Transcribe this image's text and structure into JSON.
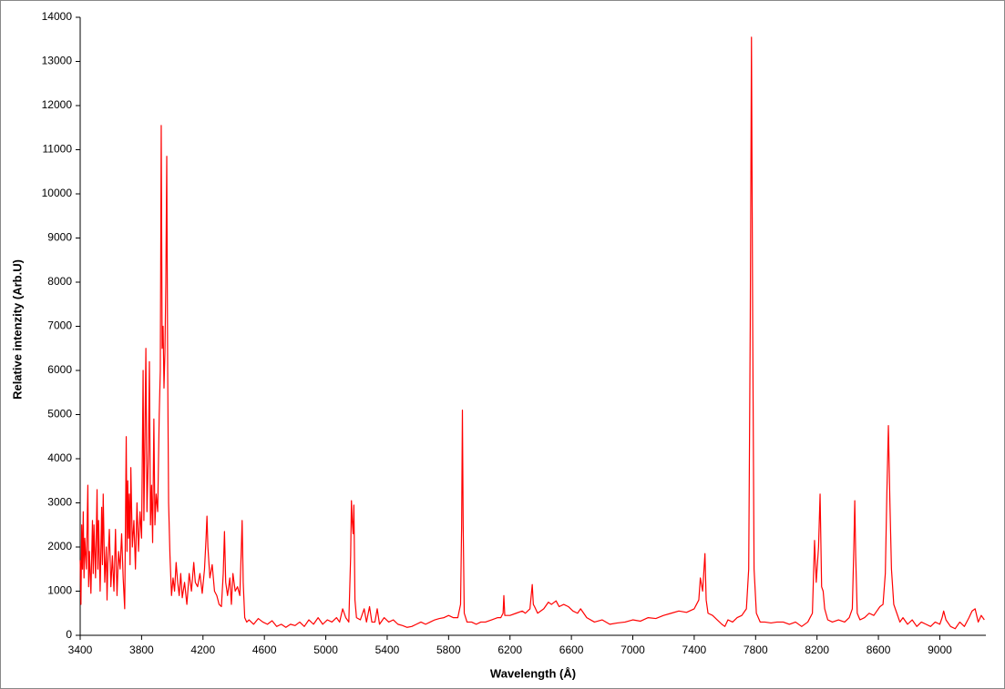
{
  "chart_data": {
    "type": "line",
    "xlabel": "Wavelength (Å)",
    "ylabel": "Relative intenzity (Arb.U)",
    "color": "#ff0000",
    "xlim": [
      3400,
      9300
    ],
    "xticks": [
      3400,
      3800,
      4200,
      4600,
      5000,
      5400,
      5800,
      6200,
      6600,
      7000,
      7400,
      7800,
      8200,
      8600,
      9000
    ],
    "ylim": [
      0,
      14000
    ],
    "yticks": [
      0,
      1000,
      2000,
      3000,
      4000,
      5000,
      6000,
      7000,
      8000,
      9000,
      10000,
      11000,
      12000,
      13000,
      14000
    ],
    "grid": false,
    "x": [
      3400,
      3405,
      3410,
      3415,
      3420,
      3425,
      3430,
      3440,
      3450,
      3455,
      3460,
      3470,
      3480,
      3485,
      3490,
      3500,
      3510,
      3515,
      3520,
      3530,
      3540,
      3545,
      3550,
      3560,
      3570,
      3575,
      3580,
      3590,
      3600,
      3610,
      3620,
      3630,
      3640,
      3650,
      3660,
      3670,
      3680,
      3690,
      3700,
      3705,
      3710,
      3715,
      3720,
      3725,
      3730,
      3740,
      3750,
      3760,
      3770,
      3780,
      3790,
      3800,
      3810,
      3815,
      3820,
      3828,
      3835,
      3845,
      3851,
      3858,
      3865,
      3872,
      3880,
      3887,
      3895,
      3905,
      3915,
      3922,
      3928,
      3934,
      3940,
      3946,
      3952,
      3958,
      3964,
      3970,
      3976,
      3985,
      3995,
      4005,
      4015,
      4025,
      4035,
      4045,
      4055,
      4065,
      4080,
      4095,
      4110,
      4125,
      4140,
      4150,
      4165,
      4180,
      4195,
      4210,
      4220,
      4226,
      4232,
      4245,
      4260,
      4275,
      4290,
      4305,
      4320,
      4332,
      4340,
      4348,
      4360,
      4375,
      4385,
      4395,
      4410,
      4425,
      4440,
      4450,
      4455,
      4462,
      4472,
      4485,
      4500,
      4530,
      4560,
      4590,
      4620,
      4650,
      4680,
      4710,
      4740,
      4770,
      4800,
      4830,
      4860,
      4890,
      4920,
      4950,
      4980,
      5010,
      5040,
      5070,
      5090,
      5110,
      5130,
      5150,
      5162,
      5167,
      5172,
      5178,
      5183,
      5190,
      5200,
      5225,
      5250,
      5265,
      5285,
      5300,
      5320,
      5335,
      5350,
      5380,
      5410,
      5440,
      5470,
      5500,
      5530,
      5560,
      5590,
      5620,
      5650,
      5680,
      5710,
      5740,
      5770,
      5800,
      5830,
      5860,
      5878,
      5885,
      5890,
      5895,
      5902,
      5920,
      5950,
      5980,
      6010,
      6040,
      6080,
      6120,
      6140,
      6155,
      6160,
      6166,
      6200,
      6240,
      6280,
      6300,
      6330,
      6345,
      6352,
      6360,
      6380,
      6420,
      6450,
      6470,
      6500,
      6520,
      6550,
      6580,
      6610,
      6640,
      6660,
      6700,
      6750,
      6800,
      6850,
      6900,
      6950,
      7000,
      7050,
      7100,
      7150,
      7200,
      7250,
      7300,
      7350,
      7400,
      7430,
      7440,
      7455,
      7470,
      7478,
      7490,
      7520,
      7550,
      7580,
      7600,
      7620,
      7650,
      7680,
      7710,
      7740,
      7755,
      7765,
      7773,
      7781,
      7790,
      7805,
      7830,
      7860,
      7900,
      7940,
      7980,
      8020,
      8060,
      8100,
      8140,
      8170,
      8184,
      8195,
      8210,
      8220,
      8230,
      8240,
      8250,
      8270,
      8300,
      8340,
      8380,
      8410,
      8430,
      8440,
      8446,
      8452,
      8462,
      8480,
      8510,
      8540,
      8570,
      8590,
      8610,
      8630,
      8645,
      8655,
      8665,
      8675,
      8685,
      8700,
      8720,
      8740,
      8760,
      8790,
      8820,
      8850,
      8880,
      8910,
      8940,
      8970,
      9000,
      9015,
      9025,
      9040,
      9070,
      9100,
      9130,
      9160,
      9190,
      9210,
      9230,
      9250,
      9270,
      9290
    ],
    "values": [
      1700,
      700,
      2500,
      1500,
      2800,
      1300,
      2200,
      1500,
      3400,
      1100,
      1900,
      950,
      2600,
      1400,
      2500,
      1300,
      3300,
      1500,
      2600,
      1000,
      2900,
      1600,
      3200,
      1200,
      2000,
      800,
      1600,
      2400,
      1100,
      1800,
      1000,
      2400,
      900,
      1900,
      1500,
      2300,
      1300,
      600,
      4500,
      1900,
      3500,
      2200,
      3200,
      1600,
      3800,
      2000,
      2600,
      1500,
      3000,
      1900,
      2800,
      2200,
      6000,
      2600,
      4000,
      6500,
      2800,
      4200,
      6200,
      2500,
      3400,
      2100,
      4900,
      2500,
      3200,
      2800,
      5000,
      6000,
      11550,
      6500,
      7000,
      5600,
      6400,
      8000,
      10850,
      6000,
      3000,
      1800,
      900,
      1300,
      1000,
      1650,
      1200,
      900,
      1400,
      850,
      1200,
      700,
      1400,
      1000,
      1650,
      1200,
      1100,
      1400,
      950,
      1500,
      2200,
      2700,
      2000,
      1300,
      1600,
      1000,
      900,
      700,
      650,
      1400,
      2350,
      1200,
      900,
      1300,
      700,
      1400,
      1000,
      1100,
      900,
      2000,
      2600,
      1200,
      400,
      300,
      350,
      250,
      380,
      300,
      250,
      330,
      200,
      250,
      180,
      250,
      220,
      300,
      200,
      350,
      250,
      400,
      250,
      350,
      300,
      400,
      300,
      600,
      400,
      300,
      1800,
      3050,
      2600,
      2300,
      2950,
      800,
      400,
      350,
      600,
      300,
      650,
      300,
      300,
      600,
      250,
      400,
      300,
      350,
      250,
      220,
      180,
      200,
      250,
      300,
      250,
      300,
      350,
      380,
      400,
      450,
      400,
      400,
      700,
      2500,
      5100,
      2500,
      500,
      300,
      300,
      250,
      300,
      300,
      350,
      400,
      400,
      500,
      900,
      450,
      450,
      500,
      550,
      500,
      600,
      1150,
      700,
      650,
      500,
      600,
      750,
      700,
      780,
      650,
      700,
      650,
      550,
      500,
      600,
      400,
      300,
      350,
      250,
      280,
      300,
      350,
      320,
      400,
      380,
      450,
      500,
      550,
      520,
      600,
      800,
      1300,
      1000,
      1850,
      800,
      500,
      450,
      350,
      250,
      200,
      350,
      300,
      400,
      450,
      600,
      1500,
      7000,
      13550,
      7000,
      1500,
      500,
      300,
      300,
      280,
      300,
      300,
      250,
      300,
      200,
      300,
      500,
      2150,
      1200,
      2000,
      3200,
      1100,
      1000,
      600,
      350,
      300,
      350,
      300,
      400,
      600,
      2000,
      3050,
      1800,
      500,
      350,
      400,
      500,
      450,
      550,
      650,
      700,
      1400,
      3200,
      4750,
      3000,
      1500,
      700,
      500,
      300,
      400,
      250,
      350,
      200,
      300,
      250,
      200,
      300,
      250,
      400,
      550,
      350,
      200,
      150,
      300,
      200,
      400,
      550,
      600,
      300,
      450,
      350
    ]
  }
}
